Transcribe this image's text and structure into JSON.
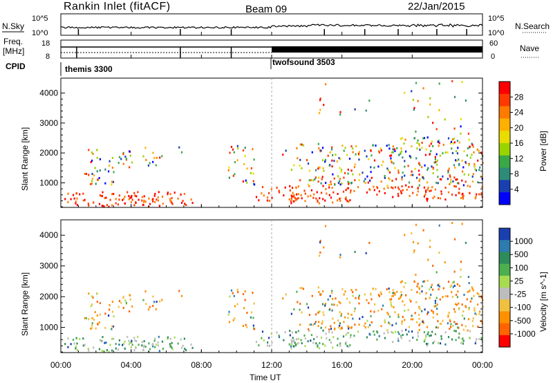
{
  "header": {
    "station": "Rankin Inlet (fitACF)",
    "beam": "Beam 09",
    "date": "22/Jan/2015"
  },
  "noise_panel": {
    "left_label": "N.Sky",
    "left_ticks": [
      "10^5",
      "10^0"
    ],
    "right_label": "N.Search",
    "right_ticks": [
      "10^5",
      "10^0"
    ]
  },
  "freq_panel": {
    "left_label_1": "Freq.",
    "left_label_2": "[MHz]",
    "left_ticks": [
      "18",
      "8"
    ],
    "right_label": "Nave",
    "right_ticks": [
      "60",
      "0"
    ]
  },
  "cpid": {
    "label": "CPID",
    "modes": [
      {
        "name": "themis 3300",
        "start_hour": 0,
        "end_hour": 12
      },
      {
        "name": "twofsound 3503",
        "start_hour": 12,
        "end_hour": 24
      }
    ]
  },
  "time_axis": {
    "label": "Time UT",
    "ticks": [
      "00:00",
      "04:00",
      "08:00",
      "12:00",
      "16:00",
      "20:00",
      "00:00"
    ]
  },
  "range_axis": {
    "label": "Slant Range [km]",
    "ticks": [
      "1000",
      "2000",
      "3000",
      "4000"
    ]
  },
  "power_colorbar": {
    "label": "Power [dB]",
    "ticks": [
      "28",
      "24",
      "20",
      "16",
      "12",
      "8",
      "4"
    ],
    "colors": [
      "#ff0000",
      "#ff3a00",
      "#ff7a00",
      "#ffb000",
      "#e8dc00",
      "#9ad400",
      "#3aa846",
      "#2e8b78",
      "#1a3fb0",
      "#0000ff"
    ]
  },
  "velocity_colorbar": {
    "label": "Velocity [m s^-1]",
    "ticks": [
      "1000",
      "500",
      "100",
      "25",
      "-25",
      "-100",
      "-500",
      "-1000"
    ],
    "colors": [
      "#1a3fb0",
      "#2e7bb0",
      "#2e8b5a",
      "#4caf50",
      "#a8dc50",
      "#bdbdbd",
      "#f0c040",
      "#ff9000",
      "#ff6400",
      "#ff0000"
    ]
  },
  "chart_data": {
    "type": "heatmap",
    "x_range_hours": [
      0,
      24
    ],
    "y_range_km": [
      180,
      4500
    ],
    "beam": 9,
    "grid": false
  }
}
